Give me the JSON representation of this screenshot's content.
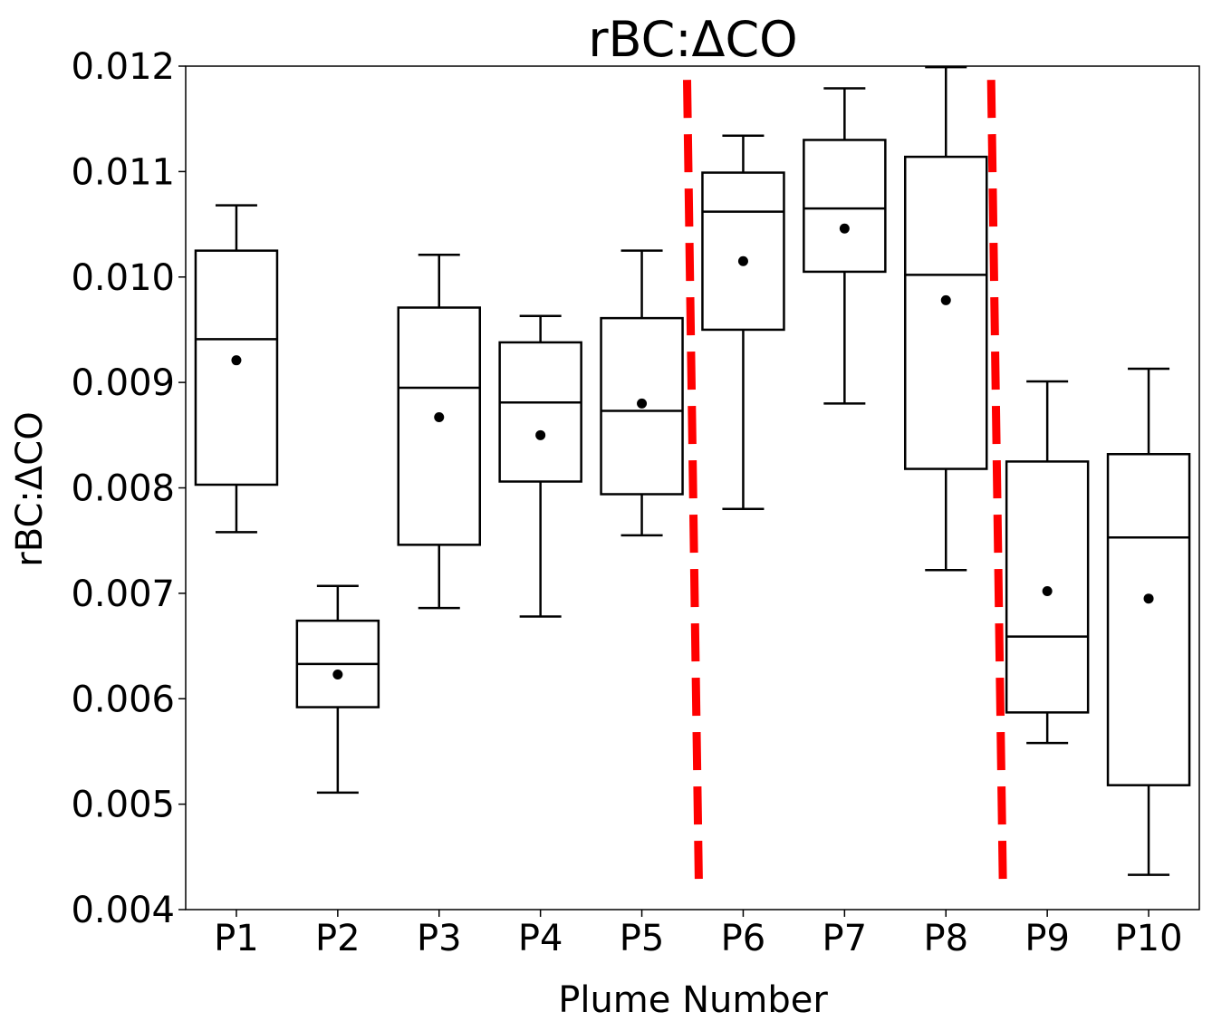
{
  "chart_data": {
    "type": "box",
    "title": "rBC:ΔCO",
    "xlabel": "Plume Number",
    "ylabel": "rBC:ΔCO",
    "ylim": [
      0.004,
      0.012
    ],
    "yticks": [
      0.004,
      0.005,
      0.006,
      0.007,
      0.008,
      0.009,
      0.01,
      0.011,
      0.012
    ],
    "ytick_labels": [
      "0.004",
      "0.005",
      "0.006",
      "0.007",
      "0.008",
      "0.009",
      "0.010",
      "0.011",
      "0.012"
    ],
    "categories": [
      "P1",
      "P2",
      "P3",
      "P4",
      "P5",
      "P6",
      "P7",
      "P8",
      "P9",
      "P10"
    ],
    "boxes": [
      {
        "whisker_low": 0.00758,
        "q1": 0.00803,
        "median": 0.00941,
        "q3": 0.01025,
        "whisker_high": 0.01068,
        "mean": 0.00921
      },
      {
        "whisker_low": 0.00511,
        "q1": 0.00592,
        "median": 0.00633,
        "q3": 0.00674,
        "whisker_high": 0.00707,
        "mean": 0.00623
      },
      {
        "whisker_low": 0.00686,
        "q1": 0.00746,
        "median": 0.00895,
        "q3": 0.00971,
        "whisker_high": 0.01021,
        "mean": 0.00867
      },
      {
        "whisker_low": 0.00678,
        "q1": 0.00806,
        "median": 0.00881,
        "q3": 0.00938,
        "whisker_high": 0.00963,
        "mean": 0.0085
      },
      {
        "whisker_low": 0.00755,
        "q1": 0.00794,
        "median": 0.00873,
        "q3": 0.00961,
        "whisker_high": 0.01025,
        "mean": 0.0088
      },
      {
        "whisker_low": 0.0078,
        "q1": 0.0095,
        "median": 0.01062,
        "q3": 0.01099,
        "whisker_high": 0.01134,
        "mean": 0.01015
      },
      {
        "whisker_low": 0.0088,
        "q1": 0.01005,
        "median": 0.01065,
        "q3": 0.0113,
        "whisker_high": 0.01179,
        "mean": 0.01046
      },
      {
        "whisker_low": 0.00722,
        "q1": 0.00818,
        "median": 0.01002,
        "q3": 0.01114,
        "whisker_high": 0.01199,
        "mean": 0.00978
      },
      {
        "whisker_low": 0.00558,
        "q1": 0.00587,
        "median": 0.00659,
        "q3": 0.00825,
        "whisker_high": 0.00901,
        "mean": 0.00702
      },
      {
        "whisker_low": 0.00433,
        "q1": 0.00518,
        "median": 0.00753,
        "q3": 0.00832,
        "whisker_high": 0.00913,
        "mean": 0.00695
      }
    ],
    "separators": [
      {
        "between": [
          "P5",
          "P6"
        ],
        "color": "#ff0000",
        "style": "dashed",
        "y_top": 0.01187,
        "y_bottom": 0.00423
      },
      {
        "between": [
          "P8",
          "P9"
        ],
        "color": "#ff0000",
        "style": "dashed",
        "y_top": 0.01187,
        "y_bottom": 0.00423
      }
    ],
    "colors": {
      "box": "#000000",
      "mean_marker": "#000000",
      "separator": "#ff0000"
    },
    "grid": false,
    "legend": "none"
  }
}
